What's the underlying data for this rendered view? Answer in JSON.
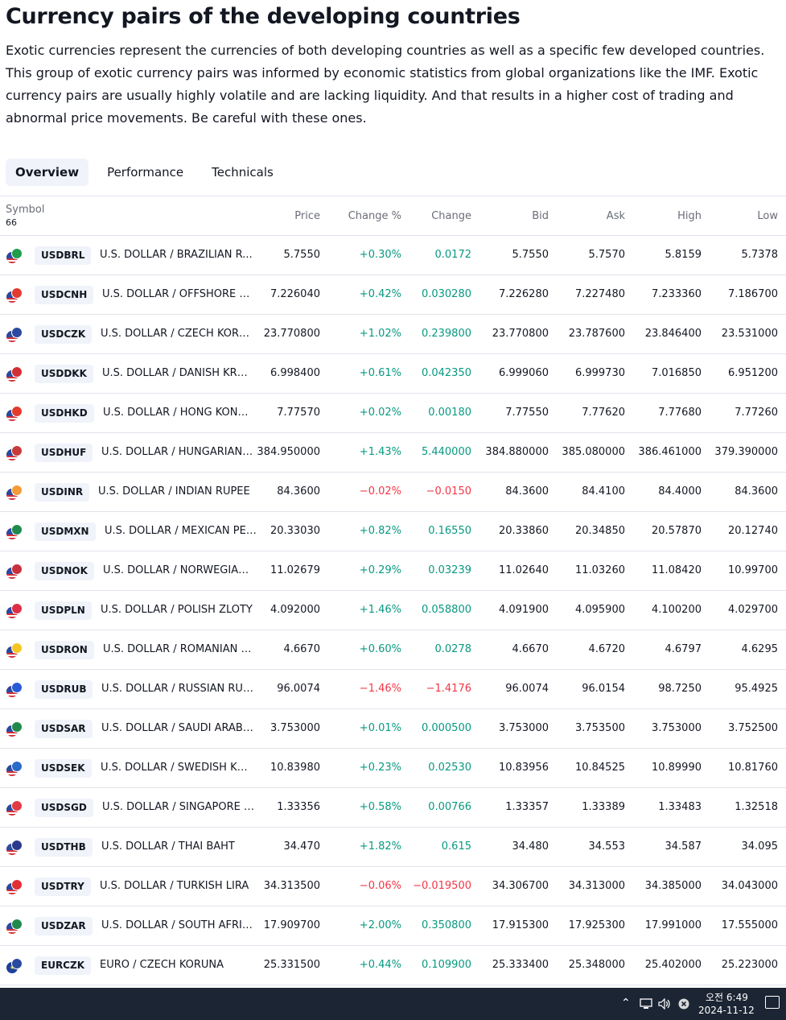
{
  "header": {
    "title": "Currency pairs of the developing countries",
    "description": "Exotic currencies represent the currencies of both developing countries as well as a specific few developed countries. This group of exotic currency pairs was informed by economic statistics from global organizations like the IMF. Exotic currency pairs are usually highly volatile and are lacking liquidity. And that results in a higher cost of trading and abnormal price movements. Be careful with these ones."
  },
  "tabs": [
    {
      "label": "Overview",
      "active": true
    },
    {
      "label": "Performance",
      "active": false
    },
    {
      "label": "Technicals",
      "active": false
    }
  ],
  "table": {
    "columns": {
      "symbol": "Symbol",
      "count": "66",
      "price": "Price",
      "change_pct": "Change %",
      "change": "Change",
      "bid": "Bid",
      "ask": "Ask",
      "high": "High",
      "low": "Low"
    },
    "rows": [
      {
        "ticker": "USDBRL",
        "name": "U.S. DOLLAR / BRAZILIAN R...",
        "price": "5.7550",
        "change_pct": "+0.30%",
        "change": "0.0172",
        "bid": "5.7550",
        "ask": "5.7570",
        "high": "5.8159",
        "low": "5.7378",
        "direction": "up",
        "flag_color": "#1f9d4a"
      },
      {
        "ticker": "USDCNH",
        "name": "U.S. DOLLAR / OFFSHORE C...",
        "price": "7.226040",
        "change_pct": "+0.42%",
        "change": "0.030280",
        "bid": "7.226280",
        "ask": "7.227480",
        "high": "7.233360",
        "low": "7.186700",
        "direction": "up",
        "flag_color": "#e23b2e"
      },
      {
        "ticker": "USDCZK",
        "name": "U.S. DOLLAR / CZECH KORU...",
        "price": "23.770800",
        "change_pct": "+1.02%",
        "change": "0.239800",
        "bid": "23.770800",
        "ask": "23.787600",
        "high": "23.846400",
        "low": "23.531000",
        "direction": "up",
        "flag_color": "#2a4aa0"
      },
      {
        "ticker": "USDDKK",
        "name": "U.S. DOLLAR / DANISH KRONE",
        "price": "6.998400",
        "change_pct": "+0.61%",
        "change": "0.042350",
        "bid": "6.999060",
        "ask": "6.999730",
        "high": "7.016850",
        "low": "6.951200",
        "direction": "up",
        "flag_color": "#d22f37"
      },
      {
        "ticker": "USDHKD",
        "name": "U.S. DOLLAR / HONG KONG ...",
        "price": "7.77570",
        "change_pct": "+0.02%",
        "change": "0.00180",
        "bid": "7.77550",
        "ask": "7.77620",
        "high": "7.77680",
        "low": "7.77260",
        "direction": "up",
        "flag_color": "#e23b2e"
      },
      {
        "ticker": "USDHUF",
        "name": "U.S. DOLLAR / HUNGARIAN ...",
        "price": "384.950000",
        "change_pct": "+1.43%",
        "change": "5.440000",
        "bid": "384.880000",
        "ask": "385.080000",
        "high": "386.461000",
        "low": "379.390000",
        "direction": "up",
        "flag_color": "#c83b3b"
      },
      {
        "ticker": "USDINR",
        "name": "U.S. DOLLAR / INDIAN RUPEE",
        "price": "84.3600",
        "change_pct": "−0.02%",
        "change": "−0.0150",
        "bid": "84.3600",
        "ask": "84.4100",
        "high": "84.4000",
        "low": "84.3600",
        "direction": "down",
        "flag_color": "#f29b38"
      },
      {
        "ticker": "USDMXN",
        "name": "U.S. DOLLAR / MEXICAN PESO",
        "price": "20.33030",
        "change_pct": "+0.82%",
        "change": "0.16550",
        "bid": "20.33860",
        "ask": "20.34850",
        "high": "20.57870",
        "low": "20.12740",
        "direction": "up",
        "flag_color": "#1f8a4c"
      },
      {
        "ticker": "USDNOK",
        "name": "U.S. DOLLAR / NORWEGIAN ...",
        "price": "11.02679",
        "change_pct": "+0.29%",
        "change": "0.03239",
        "bid": "11.02640",
        "ask": "11.03260",
        "high": "11.08420",
        "low": "10.99700",
        "direction": "up",
        "flag_color": "#c8303c"
      },
      {
        "ticker": "USDPLN",
        "name": "U.S. DOLLAR / POLISH ZLOTY",
        "price": "4.092000",
        "change_pct": "+1.46%",
        "change": "0.058800",
        "bid": "4.091900",
        "ask": "4.095900",
        "high": "4.100200",
        "low": "4.029700",
        "direction": "up",
        "flag_color": "#dc2f45"
      },
      {
        "ticker": "USDRON",
        "name": "U.S. DOLLAR / ROMANIAN L...",
        "price": "4.6670",
        "change_pct": "+0.60%",
        "change": "0.0278",
        "bid": "4.6670",
        "ask": "4.6720",
        "high": "4.6797",
        "low": "4.6295",
        "direction": "up",
        "flag_color": "#f5c623"
      },
      {
        "ticker": "USDRUB",
        "name": "U.S. DOLLAR / RUSSIAN RUB...",
        "price": "96.0074",
        "change_pct": "−1.46%",
        "change": "−1.4176",
        "bid": "96.0074",
        "ask": "96.0154",
        "high": "98.7250",
        "low": "95.4925",
        "direction": "down",
        "flag_color": "#2a5bd7"
      },
      {
        "ticker": "USDSAR",
        "name": "U.S. DOLLAR / SAUDI ARABI...",
        "price": "3.753000",
        "change_pct": "+0.01%",
        "change": "0.000500",
        "bid": "3.753000",
        "ask": "3.753500",
        "high": "3.753000",
        "low": "3.752500",
        "direction": "up",
        "flag_color": "#1f8a4c"
      },
      {
        "ticker": "USDSEK",
        "name": "U.S. DOLLAR / SWEDISH KRO...",
        "price": "10.83980",
        "change_pct": "+0.23%",
        "change": "0.02530",
        "bid": "10.83956",
        "ask": "10.84525",
        "high": "10.89990",
        "low": "10.81760",
        "direction": "up",
        "flag_color": "#2a6ac8"
      },
      {
        "ticker": "USDSGD",
        "name": "U.S. DOLLAR / SINGAPORE D...",
        "price": "1.33356",
        "change_pct": "+0.58%",
        "change": "0.00766",
        "bid": "1.33357",
        "ask": "1.33389",
        "high": "1.33483",
        "low": "1.32518",
        "direction": "up",
        "flag_color": "#e23b45"
      },
      {
        "ticker": "USDTHB",
        "name": "U.S. DOLLAR / THAI BAHT",
        "price": "34.470",
        "change_pct": "+1.82%",
        "change": "0.615",
        "bid": "34.480",
        "ask": "34.553",
        "high": "34.587",
        "low": "34.095",
        "direction": "up",
        "flag_color": "#2a3a8a"
      },
      {
        "ticker": "USDTRY",
        "name": "U.S. DOLLAR / TURKISH LIRA",
        "price": "34.313500",
        "change_pct": "−0.06%",
        "change": "−0.019500",
        "bid": "34.306700",
        "ask": "34.313000",
        "high": "34.385000",
        "low": "34.043000",
        "direction": "down",
        "flag_color": "#e02f35"
      },
      {
        "ticker": "USDZAR",
        "name": "U.S. DOLLAR / SOUTH AFRIC...",
        "price": "17.909700",
        "change_pct": "+2.00%",
        "change": "0.350800",
        "bid": "17.915300",
        "ask": "17.925300",
        "high": "17.991000",
        "low": "17.555000",
        "direction": "up",
        "flag_color": "#1f8a4c"
      },
      {
        "ticker": "EURCZK",
        "name": "EURO / CZECH KORUNA",
        "price": "25.331500",
        "change_pct": "+0.44%",
        "change": "0.109900",
        "bid": "25.333400",
        "ask": "25.348000",
        "high": "25.402000",
        "low": "25.223000",
        "direction": "up",
        "flag_color": "#2a4aa0",
        "flag_base": "eu"
      }
    ]
  },
  "taskbar": {
    "time": "오전 6:49",
    "date": "2024-11-12",
    "icons": [
      "chevron-up-icon",
      "network-icon",
      "volume-icon",
      "close-circle-icon",
      "notification-icon"
    ]
  }
}
